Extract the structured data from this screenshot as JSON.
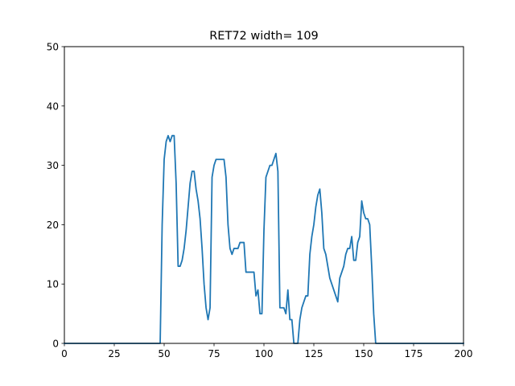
{
  "chart_data": {
    "type": "line",
    "title": "RET72 width= 109",
    "xlabel": "",
    "ylabel": "",
    "xlim": [
      0,
      200
    ],
    "ylim": [
      0,
      50
    ],
    "xticks": [
      0,
      25,
      50,
      75,
      100,
      125,
      150,
      175,
      200
    ],
    "yticks": [
      0,
      10,
      20,
      30,
      40,
      50
    ],
    "grid": false,
    "legend": "none",
    "series_color": "#1f77b4",
    "series": [
      {
        "x": [
          0,
          48,
          49,
          50,
          51,
          52,
          53,
          54,
          55,
          56,
          57,
          58,
          59,
          60,
          61,
          62,
          63,
          64,
          65,
          66,
          67,
          68,
          69,
          70,
          71,
          72,
          73,
          74,
          75,
          76,
          77,
          78,
          79,
          80,
          81,
          82,
          83,
          84,
          85,
          86,
          87,
          88,
          89,
          90,
          91,
          92,
          93,
          94,
          95,
          96,
          97,
          98,
          99,
          100,
          101,
          102,
          103,
          104,
          105,
          106,
          107,
          108,
          109,
          110,
          111,
          112,
          113,
          114,
          115,
          116,
          117,
          118,
          119,
          120,
          121,
          122,
          123,
          124,
          125,
          126,
          127,
          128,
          129,
          130,
          131,
          132,
          133,
          134,
          135,
          136,
          137,
          138,
          139,
          140,
          141,
          142,
          143,
          144,
          145,
          146,
          147,
          148,
          149,
          150,
          151,
          152,
          153,
          154,
          155,
          156,
          157,
          158,
          200
        ],
        "y": [
          0,
          0,
          20,
          31,
          34,
          35,
          34,
          35,
          35,
          27,
          13,
          13,
          14,
          16,
          19,
          23,
          27,
          29,
          29,
          26,
          24,
          21,
          16,
          10,
          6,
          4,
          6,
          28,
          30,
          31,
          31,
          31,
          31,
          31,
          28,
          20,
          16,
          15,
          16,
          16,
          16,
          17,
          17,
          17,
          12,
          12,
          12,
          12,
          12,
          8,
          9,
          5,
          5,
          19,
          28,
          29,
          30,
          30,
          31,
          32,
          29,
          6,
          6,
          6,
          5,
          9,
          4,
          4,
          0,
          0,
          0,
          4,
          6,
          7,
          8,
          8,
          15,
          18,
          20,
          23,
          25,
          26,
          22,
          16,
          15,
          13,
          11,
          10,
          9,
          8,
          7,
          11,
          12,
          13,
          15,
          16,
          16,
          18,
          14,
          14,
          17,
          18,
          24,
          22,
          21,
          21,
          20,
          13,
          5,
          0,
          0,
          0,
          0
        ]
      }
    ]
  }
}
